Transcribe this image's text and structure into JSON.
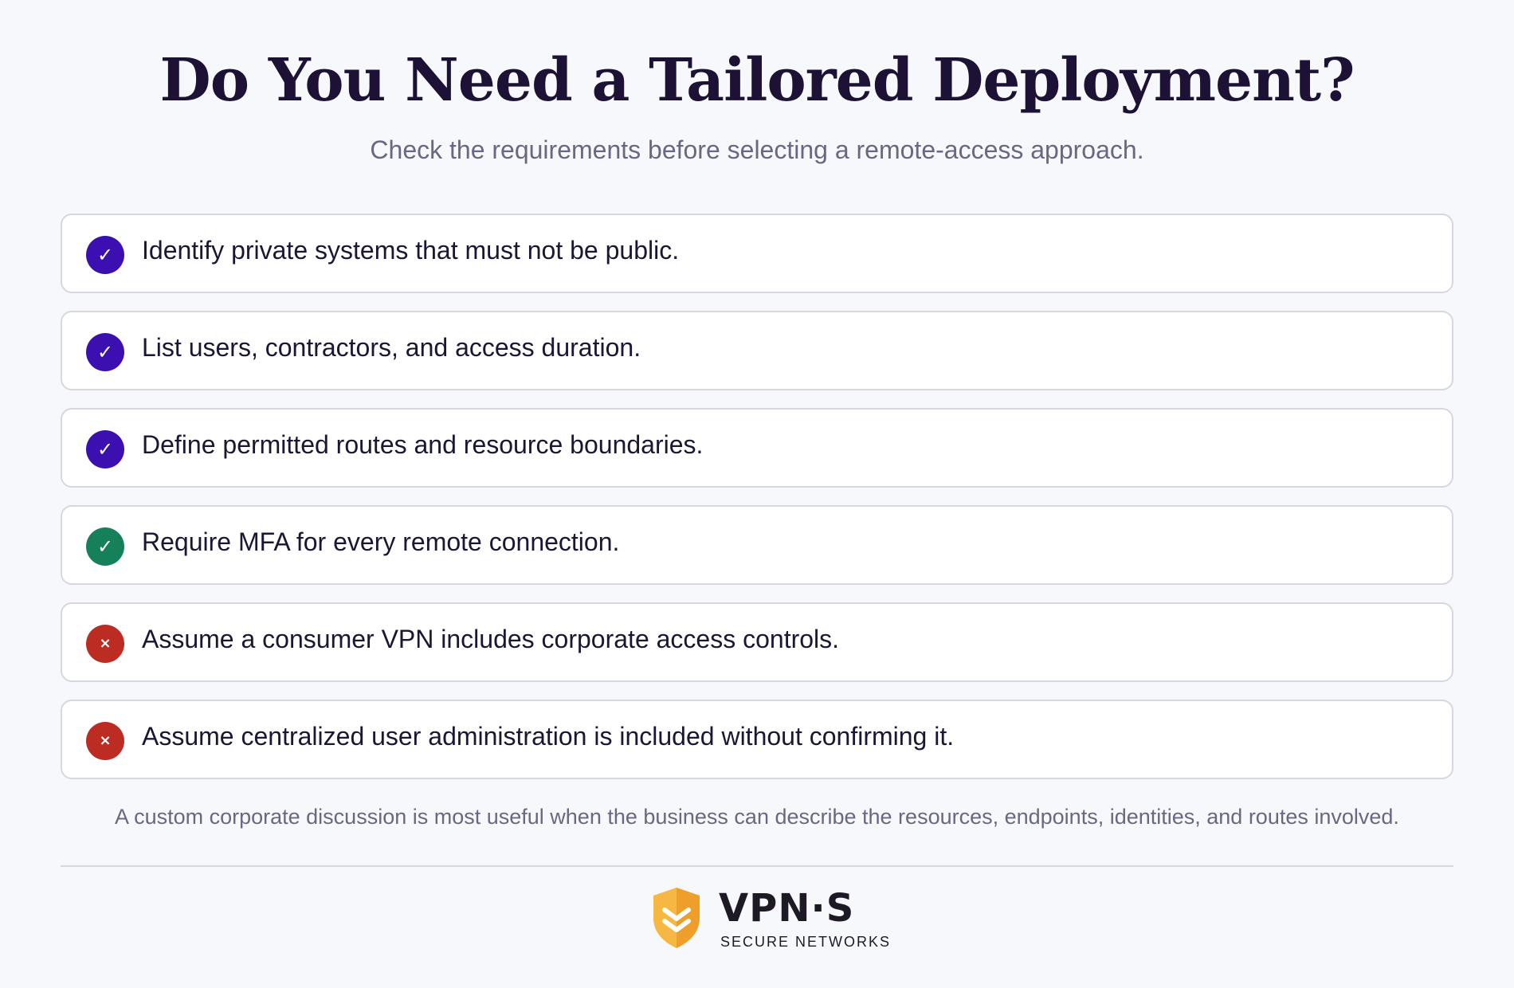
{
  "header": {
    "title": "Do You Need a Tailored Deployment?",
    "subtitle": "Check the requirements before selecting a remote-access approach."
  },
  "checklist": {
    "items": [
      {
        "status": "check",
        "symbol": "✓",
        "color": "#3b0fb0",
        "text": "Identify private systems that must not be public."
      },
      {
        "status": "check",
        "symbol": "✓",
        "color": "#3b0fb0",
        "text": "List users, contractors, and access duration."
      },
      {
        "status": "check",
        "symbol": "✓",
        "color": "#3b0fb0",
        "text": "Define permitted routes and resource boundaries."
      },
      {
        "status": "check",
        "symbol": "✓",
        "color": "#16805a",
        "text": "Require MFA for every remote connection."
      },
      {
        "status": "cross",
        "symbol": "×",
        "color": "#bd2c22",
        "text": "Assume a consumer VPN includes corporate access controls."
      },
      {
        "status": "cross",
        "symbol": "×",
        "color": "#bd2c22",
        "text": "Assume centralized user administration is included without confirming it."
      }
    ]
  },
  "footnote": "A custom corporate discussion is most useful when the business can describe the resources, endpoints, identities, and routes involved.",
  "logo": {
    "icon": "shield-chevron-icon",
    "name": "VPN·S",
    "tagline": "SECURE NETWORKS",
    "colors": {
      "shield_light": "#f7b843",
      "shield_dark": "#ee9e2a",
      "text": "#1d1a26"
    }
  }
}
